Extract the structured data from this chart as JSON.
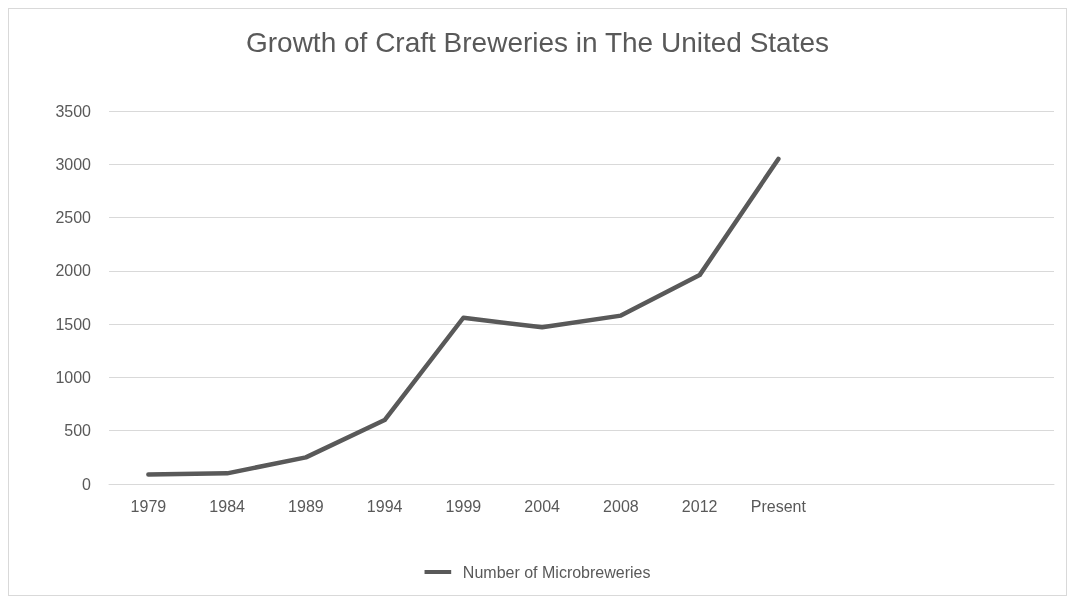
{
  "chart_data": {
    "type": "line",
    "title": "Growth of Craft Breweries in The United States",
    "categories": [
      "1979",
      "1984",
      "1989",
      "1994",
      "1999",
      "2004",
      "2008",
      "2012",
      "Present",
      null,
      null,
      null
    ],
    "series": [
      {
        "name": "Number of Microbreweries",
        "color": "#595959",
        "values": [
          90,
          100,
          250,
          600,
          1560,
          1470,
          1580,
          1960,
          3050,
          null,
          null,
          null
        ]
      }
    ],
    "ylim": [
      0,
      3500
    ],
    "yticks": [
      0,
      500,
      1000,
      1500,
      2000,
      2500,
      3000,
      3500
    ],
    "grid": "y",
    "legend": "bottom",
    "marker": "none",
    "line_style": "solid"
  }
}
